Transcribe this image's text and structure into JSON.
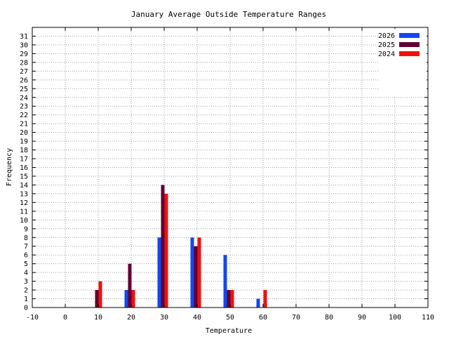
{
  "chart_data": {
    "type": "bar",
    "title": "January Average Outside Temperature Ranges",
    "xlabel": "Temperature",
    "ylabel": "Frequency",
    "xlim": [
      -10,
      110
    ],
    "ylim": [
      0,
      32
    ],
    "xticks": [
      -10,
      0,
      10,
      20,
      30,
      40,
      50,
      60,
      70,
      80,
      90,
      100,
      110
    ],
    "yticks": [
      0,
      1,
      2,
      3,
      4,
      5,
      6,
      7,
      8,
      9,
      10,
      11,
      12,
      13,
      14,
      15,
      16,
      17,
      18,
      19,
      20,
      21,
      22,
      23,
      24,
      25,
      26,
      27,
      28,
      29,
      30,
      31
    ],
    "grid": true,
    "legend_position": "top-right",
    "categories": [
      10,
      20,
      30,
      40,
      50,
      60
    ],
    "series": [
      {
        "name": "2026",
        "color": "#1446f0",
        "values": [
          0,
          2,
          8,
          8,
          6,
          1
        ]
      },
      {
        "name": "2025",
        "color": "#600030",
        "values": [
          2,
          5,
          14,
          7,
          2,
          0
        ]
      },
      {
        "name": "2024",
        "color": "#f01010",
        "values": [
          3,
          2,
          13,
          8,
          2,
          2
        ]
      }
    ]
  }
}
